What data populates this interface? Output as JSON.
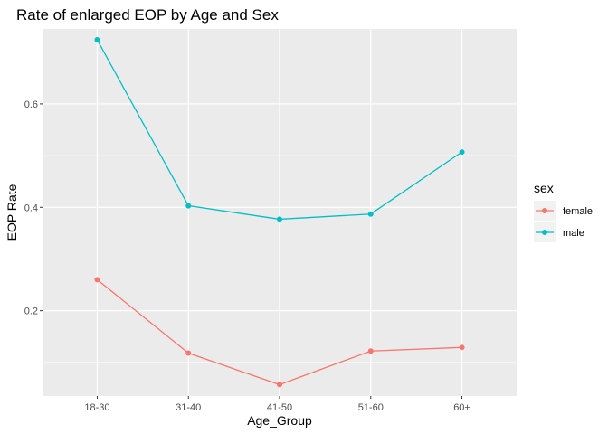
{
  "chart_data": {
    "type": "line",
    "title": "Rate of enlarged EOP by Age and Sex",
    "xlabel": "Age_Group",
    "ylabel": "EOP Rate",
    "categories": [
      "18-30",
      "31-40",
      "41-50",
      "51-60",
      "60+"
    ],
    "y_ticks": [
      0.2,
      0.4,
      0.6
    ],
    "y_tick_labels": [
      "0.2",
      "0.4",
      "0.6"
    ],
    "ylim": [
      0.035,
      0.745
    ],
    "grid": true,
    "legend": {
      "title": "sex",
      "placement": "right"
    },
    "series": [
      {
        "name": "female",
        "color": "#F8766D",
        "values": [
          0.26,
          0.118,
          0.057,
          0.122,
          0.129
        ]
      },
      {
        "name": "male",
        "color": "#00BFC4",
        "values": [
          0.724,
          0.403,
          0.377,
          0.387,
          0.507
        ]
      }
    ]
  }
}
